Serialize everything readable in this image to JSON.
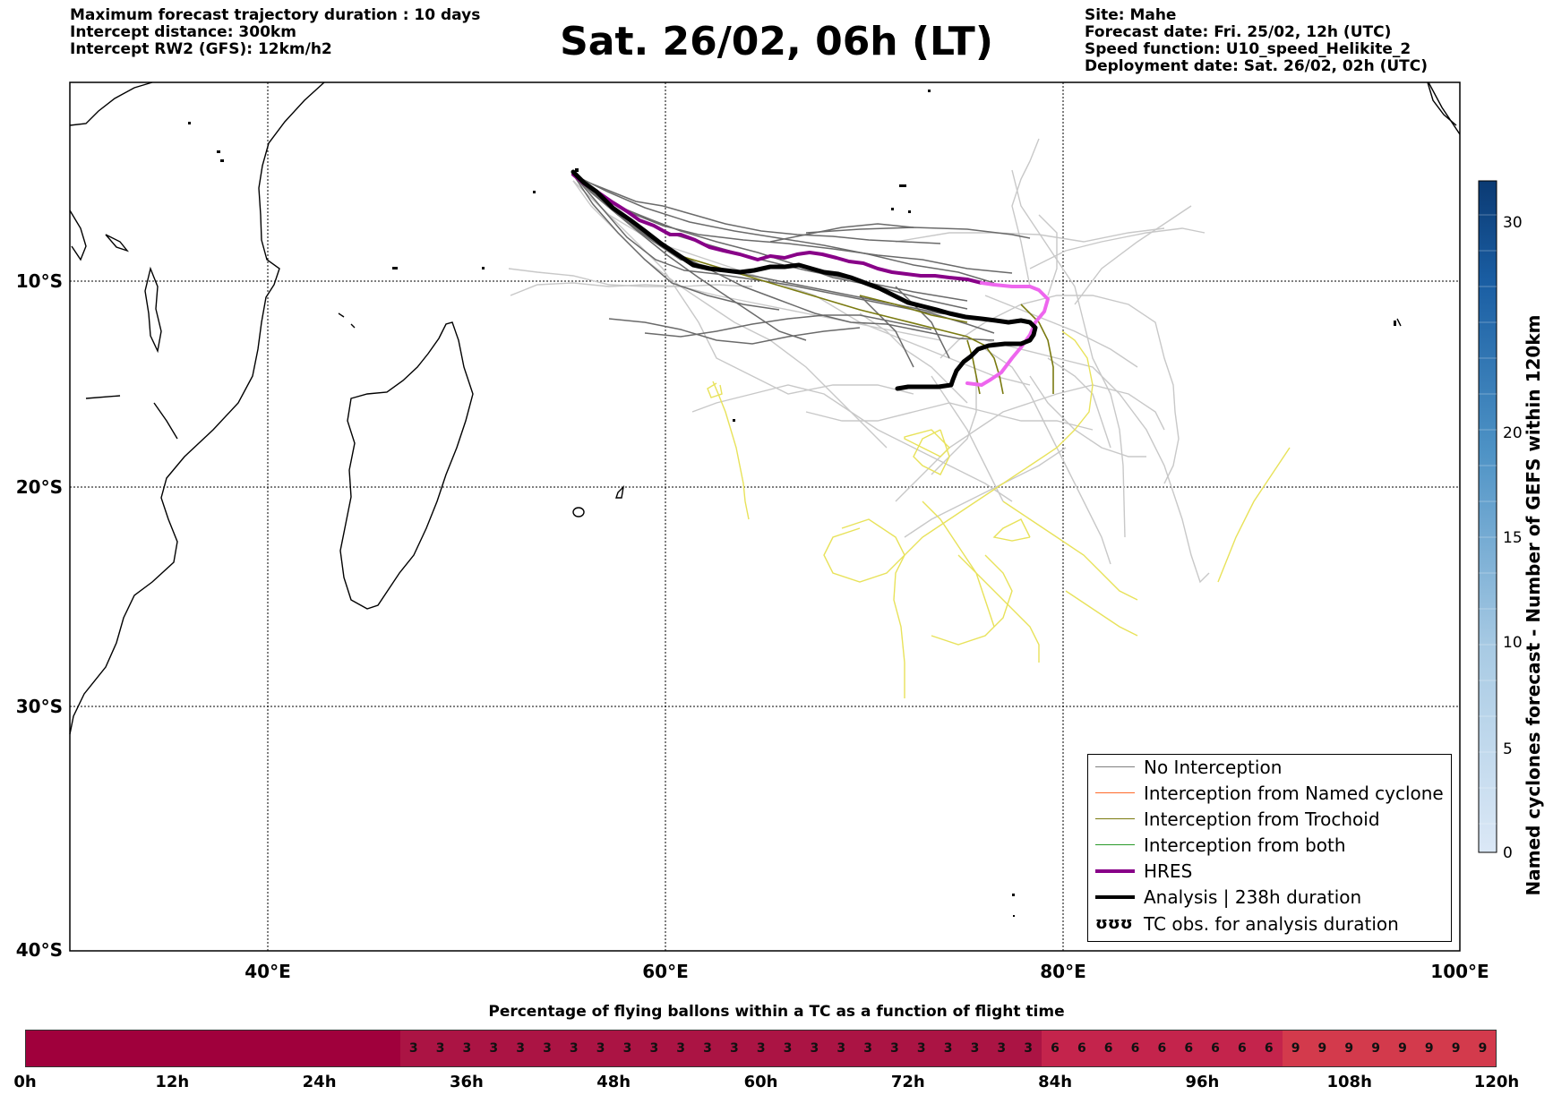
{
  "header_left": [
    "Maximum forecast trajectory duration : 10 days",
    "Intercept distance: 300km",
    "Intercept RW2 (GFS):  12km/h2"
  ],
  "title": "Sat. 26/02, 06h (LT)",
  "header_right": [
    "Site: Mahe",
    "Forecast date: Fri. 25/02, 12h (UTC)",
    "Speed function: U10_speed_Helikite_2",
    "Deployment date: Sat. 26/02, 02h (UTC)"
  ],
  "map": {
    "lon_range": [
      30,
      100
    ],
    "lat_range": [
      -40,
      3
    ],
    "lat_labels": [
      "10°S",
      "20°S",
      "30°S",
      "40°S"
    ],
    "lon_labels": [
      "40°E",
      "60°E",
      "80°E",
      "100°E"
    ],
    "gridlines": "dotted"
  },
  "legend": {
    "items": [
      {
        "label": "No Interception",
        "color": "#808080"
      },
      {
        "label": "Interception from Named cyclone",
        "color": "#ff6a2a"
      },
      {
        "label": "Interception from Trochoid",
        "color": "#7a7a10"
      },
      {
        "label": "Interception from both",
        "color": "#2a9a2a"
      },
      {
        "label": "HRES",
        "color": "#880088"
      },
      {
        "label": "Analysis | 238h duration",
        "color": "#000000"
      },
      {
        "label": "TC obs. for analysis duration",
        "icon": "cyclone-symbol-icon",
        "symbol": "ʊʊʊ"
      }
    ]
  },
  "vertical_colorbar": {
    "label": "Named cyclones forecast - Number of GEFS within 120km",
    "ticks": [
      "0",
      "5",
      "10",
      "15",
      "20",
      "30"
    ],
    "color_low": "#dbe8f6",
    "color_high": "#0b3a73"
  },
  "horizontal_colorbar": {
    "title": "Percentage of flying ballons within a TC as a function of flight time",
    "cells": [
      "",
      "",
      "",
      "",
      "",
      "",
      "",
      "",
      "",
      "",
      "",
      "",
      "",
      "",
      "3",
      "3",
      "3",
      "3",
      "3",
      "3",
      "3",
      "3",
      "3",
      "3",
      "3",
      "3",
      "3",
      "3",
      "3",
      "3",
      "3",
      "3",
      "3",
      "3",
      "3",
      "3",
      "3",
      "3",
      "6",
      "6",
      "6",
      "6",
      "6",
      "6",
      "6",
      "6",
      "6",
      "9",
      "9",
      "9",
      "9",
      "9",
      "9",
      "9",
      "9"
    ],
    "ticks": [
      "0h",
      "12h",
      "24h",
      "36h",
      "48h",
      "60h",
      "72h",
      "84h",
      "96h",
      "108h",
      "120h"
    ],
    "colors": {
      "0": "#a0003c",
      "3": "#ab1444",
      "6": "#c4244c",
      "9": "#d33a4c"
    }
  }
}
